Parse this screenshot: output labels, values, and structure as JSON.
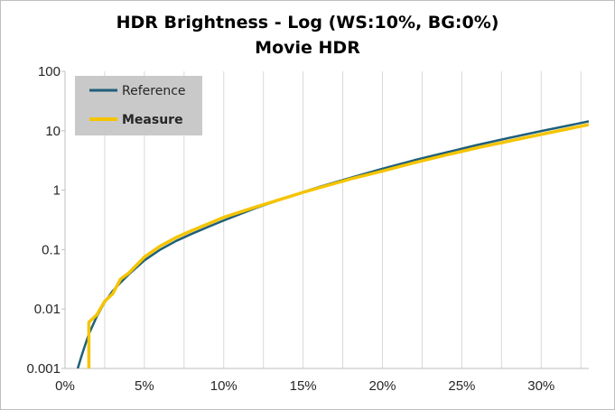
{
  "chart_data": {
    "type": "line",
    "title": "HDR Brightness - Log (WS:10%, BG:0%)",
    "subtitle": "Movie HDR",
    "xlabel": "",
    "ylabel": "",
    "y_scale": "log",
    "xlim": [
      0,
      33
    ],
    "ylim": [
      0.001,
      100
    ],
    "x_ticks": [
      "0%",
      "5%",
      "10%",
      "15%",
      "20%",
      "25%",
      "30%"
    ],
    "y_ticks": [
      "0.001",
      "0.01",
      "0.1",
      "1",
      "10",
      "100"
    ],
    "grid": "vertical",
    "legend": "top-left",
    "series": [
      {
        "name": "Reference",
        "color": "#1f5f7a",
        "x": [
          0.8,
          1.0,
          1.2,
          1.5,
          2.0,
          2.5,
          3.0,
          3.5,
          4.0,
          5.0,
          6.0,
          7.0,
          8.0,
          9.0,
          10.0,
          12.0,
          14.0,
          15.0,
          16.0,
          18.0,
          20.0,
          22.0,
          24.0,
          26.0,
          28.0,
          30.0,
          32.0,
          33.0
        ],
        "y": [
          0.001,
          0.0015,
          0.0022,
          0.0038,
          0.0075,
          0.013,
          0.02,
          0.028,
          0.038,
          0.066,
          0.1,
          0.14,
          0.185,
          0.24,
          0.31,
          0.5,
          0.76,
          0.93,
          1.13,
          1.62,
          2.3,
          3.2,
          4.3,
          5.8,
          7.6,
          9.9,
          12.7,
          14.4
        ]
      },
      {
        "name": "Measure",
        "color": "#f5c400",
        "x": [
          1.5,
          1.5,
          2.0,
          2.5,
          3.0,
          3.5,
          4.0,
          5.0,
          6.0,
          7.0,
          8.0,
          9.0,
          10.0,
          12.0,
          14.0,
          15.0,
          16.0,
          18.0,
          20.0,
          22.0,
          24.0,
          26.0,
          28.0,
          30.0,
          32.0,
          33.0
        ],
        "y": [
          0.001,
          0.006,
          0.008,
          0.0135,
          0.018,
          0.032,
          0.04,
          0.075,
          0.115,
          0.16,
          0.21,
          0.27,
          0.35,
          0.52,
          0.76,
          0.92,
          1.1,
          1.55,
          2.1,
          2.9,
          3.9,
          5.2,
          6.7,
          8.7,
          11.2,
          12.7
        ]
      }
    ]
  }
}
